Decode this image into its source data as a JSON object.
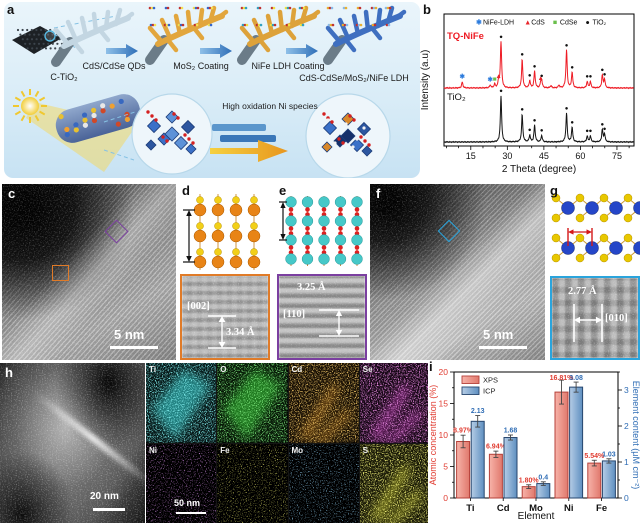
{
  "panel_a": {
    "label": "a",
    "step_labels": [
      "C-TiO₂",
      "CdS/CdSe QDs",
      "MoS₂ Coating",
      "NiFe LDH Coating",
      "CdS-CdSe/MoS₂/NiFe LDH"
    ],
    "annotation": "High oxidation Ni species"
  },
  "panel_b": {
    "label": "b"
  },
  "panel_c": {
    "label": "c",
    "scale_bar": "5 nm"
  },
  "panel_d": {
    "label": "d",
    "plane": "[002]",
    "spacing": "3.34 Å",
    "atoms": {
      "large": "#e88416",
      "small": "#f2d018",
      "bond": "#d8a860"
    },
    "frame": "#e07b28"
  },
  "panel_e": {
    "label": "e",
    "plane": "[110]",
    "spacing": "3.25 Å",
    "atoms": {
      "large": "#46c8c8",
      "small": "#dd2020",
      "bond": "#cc8844"
    },
    "frame": "#7b3fa0"
  },
  "panel_f": {
    "label": "f",
    "scale_bar": "5 nm"
  },
  "panel_g": {
    "label": "g",
    "plane": "[010]",
    "spacing": "2.77 Å",
    "atoms": {
      "large": "#2546c8",
      "small": "#e8c800",
      "bond": "#cc9933"
    },
    "frame": "#2aa4dc"
  },
  "panel_h": {
    "label": "h",
    "scale_bar": "20 nm",
    "eds_scale_bar": "50 nm",
    "eds_maps": [
      {
        "element": "Ti",
        "color": "#38d8d8",
        "distribution": "slab"
      },
      {
        "element": "O",
        "color": "#35cc35",
        "distribution": "slab"
      },
      {
        "element": "Cd",
        "color": "#cc8420",
        "distribution": "branch"
      },
      {
        "element": "Se",
        "color": "#d844cc",
        "distribution": "branch"
      },
      {
        "element": "Ni",
        "color": "#a844cc",
        "distribution": "uniform"
      },
      {
        "element": "Fe",
        "color": "#a8a820",
        "distribution": "uniform"
      },
      {
        "element": "Mo",
        "color": "#3f88c0",
        "distribution": "uniform"
      },
      {
        "element": "S",
        "color": "#d8d830",
        "distribution": "branch"
      }
    ]
  },
  "panel_i": {
    "label": "i"
  },
  "chart_data": [
    {
      "id": "xrd",
      "type": "line",
      "xlabel": "2 Theta (degree)",
      "ylabel": "Intensity (a.u)",
      "xlim": [
        4,
        82
      ],
      "xticks": [
        15,
        30,
        45,
        60,
        75
      ],
      "legend": [
        "NiFe-LDH",
        "CdS",
        "CdSe",
        "TiO₂"
      ],
      "legend_position": "top",
      "grid": false,
      "phases": {
        "NiFe-LDH": {
          "symbol": "✱",
          "color": "#2b7bdd"
        },
        "CdS": {
          "symbol": "▲",
          "color": "#e8242a"
        },
        "CdSe": {
          "symbol": "■",
          "color": "#6abf4b"
        },
        "TiO2": {
          "symbol": "●",
          "color": "#111111"
        }
      },
      "series": [
        {
          "name": "TQ-NiFe",
          "color": "#ee1c25",
          "peaks": [
            {
              "x": 11.5,
              "h": 0.13,
              "phase": "NiFe-LDH"
            },
            {
              "x": 23.0,
              "h": 0.06,
              "phase": "NiFe-LDH"
            },
            {
              "x": 24.8,
              "h": 0.08,
              "phase": "CdSe"
            },
            {
              "x": 26.4,
              "h": 0.14,
              "phase": "CdS"
            },
            {
              "x": 27.4,
              "h": 1.0,
              "phase": "TiO2"
            },
            {
              "x": 36.1,
              "h": 0.62,
              "phase": "TiO2"
            },
            {
              "x": 39.2,
              "h": 0.16,
              "phase": "TiO2"
            },
            {
              "x": 41.2,
              "h": 0.36,
              "phase": "TiO2"
            },
            {
              "x": 43.7,
              "h": 0.1,
              "phase": "CdS"
            },
            {
              "x": 44.1,
              "h": 0.15,
              "phase": "TiO2"
            },
            {
              "x": 47.9,
              "h": 0.05
            },
            {
              "x": 51.2,
              "h": 0.06
            },
            {
              "x": 54.3,
              "h": 0.82,
              "phase": "TiO2"
            },
            {
              "x": 56.6,
              "h": 0.34,
              "phase": "TiO2"
            },
            {
              "x": 62.8,
              "h": 0.14,
              "phase": "TiO2"
            },
            {
              "x": 64.1,
              "h": 0.14,
              "phase": "TiO2"
            },
            {
              "x": 69.0,
              "h": 0.28,
              "phase": "TiO2"
            },
            {
              "x": 69.9,
              "h": 0.18,
              "phase": "TiO2"
            }
          ]
        },
        {
          "name": "TiO₂",
          "color": "#141414",
          "peaks": [
            {
              "x": 27.4,
              "h": 1.0,
              "phase": "TiO2"
            },
            {
              "x": 36.1,
              "h": 0.6,
              "phase": "TiO2"
            },
            {
              "x": 39.2,
              "h": 0.15,
              "phase": "TiO2"
            },
            {
              "x": 41.2,
              "h": 0.36,
              "phase": "TiO2"
            },
            {
              "x": 44.1,
              "h": 0.14,
              "phase": "TiO2"
            },
            {
              "x": 54.3,
              "h": 0.62,
              "phase": "TiO2"
            },
            {
              "x": 56.6,
              "h": 0.32,
              "phase": "TiO2"
            },
            {
              "x": 62.8,
              "h": 0.13,
              "phase": "TiO2"
            },
            {
              "x": 64.1,
              "h": 0.13,
              "phase": "TiO2"
            },
            {
              "x": 69.0,
              "h": 0.27,
              "phase": "TiO2"
            },
            {
              "x": 69.9,
              "h": 0.17,
              "phase": "TiO2"
            }
          ]
        }
      ]
    },
    {
      "id": "composition",
      "type": "bar",
      "categories": [
        "Ti",
        "Cd",
        "Mo",
        "Ni",
        "Fe"
      ],
      "series": [
        {
          "name": "XPS",
          "axis": "left",
          "values": [
            8.97,
            6.94,
            1.8,
            16.81,
            5.54
          ],
          "labels": [
            "8.97%",
            "6.94%",
            "1.80%",
            "16.81%",
            "5.54%"
          ],
          "errors": [
            1.0,
            0.5,
            0.3,
            1.9,
            0.45
          ],
          "fill": [
            "#f7b3a9",
            "#e0786c"
          ],
          "edge": "#b5413a",
          "label_color": "#e03c31"
        },
        {
          "name": "ICP",
          "axis": "right",
          "values": [
            2.13,
            1.68,
            0.4,
            3.08,
            1.03
          ],
          "labels": [
            "2.13",
            "1.68",
            "0.4",
            "3.08",
            "1.03"
          ],
          "errors": [
            0.16,
            0.07,
            0.05,
            0.14,
            0.06
          ],
          "fill": [
            "#b6cde6",
            "#5e8fc0"
          ],
          "edge": "#27466e",
          "label_color": "#2f6db5"
        }
      ],
      "xlabel": "Element",
      "ylabel_left": "Atomic concentration (%)",
      "ylim_left": [
        0,
        20
      ],
      "yticks_left": [
        0,
        5,
        10,
        15,
        20
      ],
      "ylabel_right": "Element content (μM cm⁻²)",
      "ylim_right": [
        0,
        3.5
      ],
      "yticks_right": [
        0,
        1,
        2,
        3
      ],
      "legend_position": "top-left",
      "grid": false,
      "error_bars": true
    }
  ]
}
